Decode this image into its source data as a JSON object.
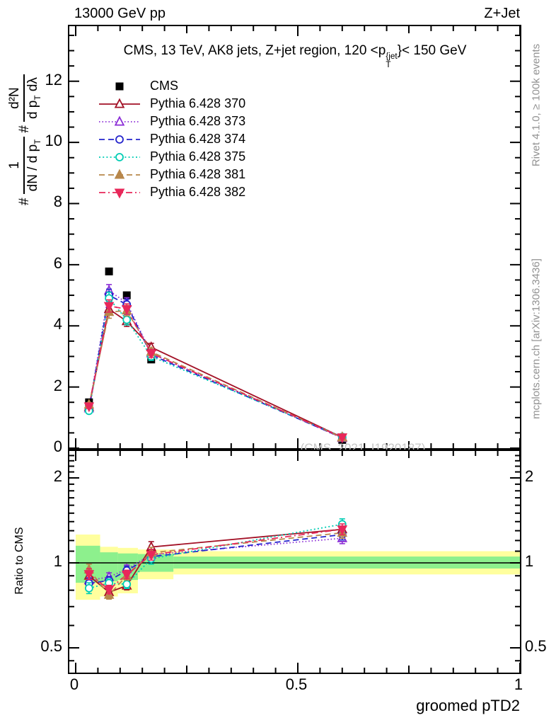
{
  "page": {
    "top_left_title": "13000 GeV pp",
    "top_right_title": "Z+Jet",
    "watermark": "(CMS_2021_I1920187)",
    "side_note_top": "Rivet 4.1.0, ≥ 100k events",
    "side_note_bottom": "mcplots.cern.ch [arXiv:1306.3436]"
  },
  "main_title": {
    "lead": "CMS, 13 TeV, AK8 jets, Z+jet region, 120 <p",
    "sup": "{jet",
    "sub": "T",
    "tail": "}< 150 GeV"
  },
  "ylabel": {
    "hash1": "#",
    "frac1_num": "1",
    "frac1_den_lead": "dN / d p",
    "frac1_den_sub": "T",
    "hash2": "#",
    "frac2_num": "d²N",
    "frac2_den_lead": "d p",
    "frac2_den_sub": "T",
    "frac2_den_tail": " dλ"
  },
  "ratio_ylabel": "Ratio to CMS",
  "chart_data": {
    "type": "line",
    "title": "CMS, 13 TeV, AK8 jets, Z+jet region, 120 < pT{jet} < 150 GeV",
    "x": [
      0.03,
      0.075,
      0.115,
      0.17,
      0.6
    ],
    "series": [
      {
        "name": "CMS",
        "color": "#000000",
        "marker": "square",
        "filled": true,
        "line": "none",
        "values": [
          1.5,
          5.78,
          5.0,
          2.9,
          0.27
        ]
      },
      {
        "name": "Pythia 6.428 370",
        "color": "#a31126",
        "marker": "triangle",
        "filled": false,
        "line": "solid",
        "values": [
          1.35,
          4.55,
          4.15,
          3.3,
          0.355
        ]
      },
      {
        "name": "Pythia 6.428 373",
        "color": "#8a2bd6",
        "marker": "triangle",
        "filled": false,
        "line": "finedot",
        "values": [
          1.3,
          5.15,
          4.75,
          3.1,
          0.33
        ]
      },
      {
        "name": "Pythia 6.428 374",
        "color": "#2525cc",
        "marker": "circle",
        "filled": false,
        "line": "dashed",
        "values": [
          1.27,
          5.0,
          4.7,
          3.05,
          0.34
        ]
      },
      {
        "name": "Pythia 6.428 375",
        "color": "#00cdb4",
        "marker": "circle",
        "filled": false,
        "line": "dotted",
        "values": [
          1.22,
          4.9,
          4.2,
          3.0,
          0.37
        ]
      },
      {
        "name": "Pythia 6.428 381",
        "color": "#b8874b",
        "marker": "triangle",
        "filled": true,
        "line": "dashed",
        "values": [
          1.42,
          4.45,
          4.5,
          3.15,
          0.345
        ]
      },
      {
        "name": "Pythia 6.428 382",
        "color": "#e8285a",
        "marker": "triangle-down",
        "filled": true,
        "line": "dashdot",
        "values": [
          1.37,
          4.65,
          4.55,
          3.1,
          0.355
        ]
      }
    ],
    "errors": {
      "main": [
        0.07,
        0.2,
        0.17,
        0.13,
        0.03
      ],
      "ratio": [
        0.045,
        0.035,
        0.035,
        0.045,
        0.045
      ]
    },
    "x_axis": {
      "title": "groomed pTD2",
      "range": [
        0,
        1
      ],
      "major": [
        0,
        0.5,
        1
      ],
      "labels": [
        "0",
        "0.5",
        "1"
      ],
      "mid": [
        0.25,
        0.75
      ],
      "minor_step": 0.05
    },
    "y_axis_main": {
      "range": [
        0,
        13.8
      ],
      "major": [
        0,
        2,
        4,
        6,
        8,
        10,
        12
      ],
      "labels": [
        "0",
        "2",
        "4",
        "6",
        "8",
        "10",
        "12"
      ],
      "minor_step": 0.5
    },
    "y_axis_ratio": {
      "scale": "log2",
      "range": [
        0.404,
        2.49
      ],
      "major": [
        0.5,
        1,
        2
      ],
      "labels": [
        "0.5",
        "1",
        "2"
      ],
      "minor": [
        0.45,
        0.6,
        0.7,
        0.8,
        0.9,
        1.1,
        1.2,
        1.3,
        1.4,
        1.5,
        1.6,
        1.7,
        1.8,
        1.9,
        2.1,
        2.2,
        2.3,
        2.4
      ]
    },
    "ratio_reference": 1,
    "bands": {
      "edges": [
        0,
        0.055,
        0.095,
        0.14,
        0.22,
        1.0
      ],
      "yellow": [
        [
          0.74,
          1.26
        ],
        [
          0.76,
          1.14
        ],
        [
          0.78,
          1.13
        ],
        [
          0.875,
          1.115
        ],
        [
          0.91,
          1.1
        ]
      ],
      "green": [
        [
          0.85,
          1.15
        ],
        [
          0.86,
          1.09
        ],
        [
          0.87,
          1.08
        ],
        [
          0.93,
          1.075
        ],
        [
          0.955,
          1.053
        ]
      ],
      "yellow_color": "#ffff9e",
      "green_color": "#8df08d"
    }
  }
}
